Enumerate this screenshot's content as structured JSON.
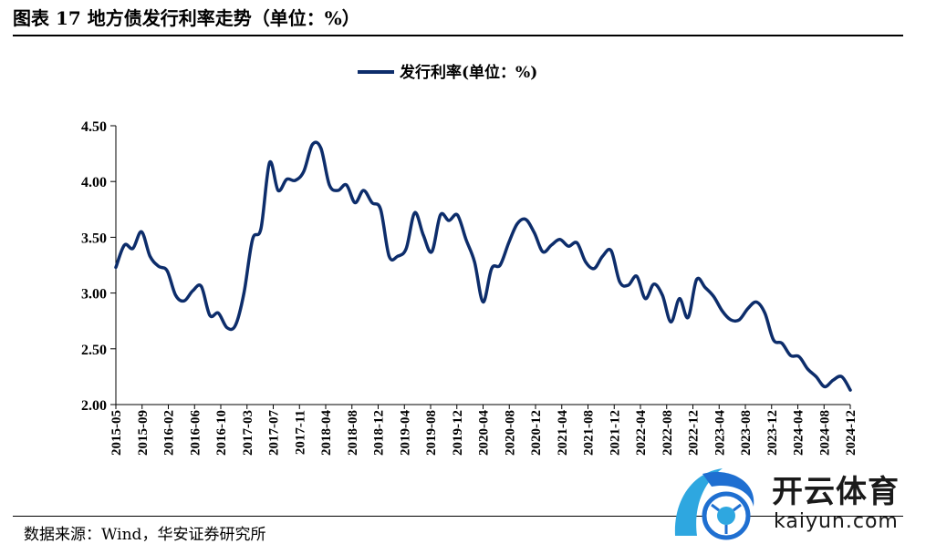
{
  "figure": {
    "title": "图表 17  地方债发行利率走势（单位：%）",
    "source": "数据来源：Wind，华安证券研究所"
  },
  "watermark": {
    "text_cn": "开云体育",
    "text_en": "kaiyun.com"
  },
  "colors": {
    "line": "#0d2d6b",
    "axis": "#000000"
  },
  "chart_data": {
    "type": "line",
    "ylim": [
      2.0,
      4.5
    ],
    "yticks": [
      "4.50",
      "4.00",
      "3.50",
      "3.00",
      "2.50",
      "2.00"
    ],
    "ytick_values": [
      4.5,
      4.0,
      3.5,
      3.0,
      2.5,
      2.0
    ],
    "xticks": [
      "2015-05",
      "2015-09",
      "2016-02",
      "2016-06",
      "2016-10",
      "2017-03",
      "2017-07",
      "2017-11",
      "2018-04",
      "2018-08",
      "2018-12",
      "2019-04",
      "2019-08",
      "2019-12",
      "2020-04",
      "2020-08",
      "2020-12",
      "2021-04",
      "2021-08",
      "2021-12",
      "2022-04",
      "2022-08",
      "2022-12",
      "2023-04",
      "2023-08",
      "2023-12",
      "2024-04",
      "2024-08",
      "2024-12"
    ],
    "legend_position": "top-center",
    "series": [
      {
        "name": "发行利率(单位：%)",
        "values": [
          3.23,
          3.43,
          3.4,
          3.55,
          3.33,
          3.24,
          3.2,
          2.98,
          2.93,
          3.02,
          3.06,
          2.8,
          2.82,
          2.69,
          2.71,
          3.0,
          3.48,
          3.58,
          4.17,
          3.92,
          4.02,
          4.01,
          4.09,
          4.33,
          4.3,
          3.97,
          3.92,
          3.97,
          3.81,
          3.92,
          3.81,
          3.75,
          3.33,
          3.33,
          3.4,
          3.72,
          3.52,
          3.37,
          3.7,
          3.65,
          3.7,
          3.48,
          3.28,
          2.92,
          3.22,
          3.25,
          3.45,
          3.62,
          3.66,
          3.54,
          3.37,
          3.43,
          3.48,
          3.42,
          3.45,
          3.28,
          3.22,
          3.33,
          3.38,
          3.1,
          3.07,
          3.15,
          2.95,
          3.08,
          2.98,
          2.74,
          2.95,
          2.78,
          3.12,
          3.05,
          2.97,
          2.84,
          2.76,
          2.76,
          2.86,
          2.92,
          2.82,
          2.58,
          2.55,
          2.44,
          2.43,
          2.32,
          2.25,
          2.16,
          2.22,
          2.25,
          2.13
        ]
      }
    ]
  }
}
